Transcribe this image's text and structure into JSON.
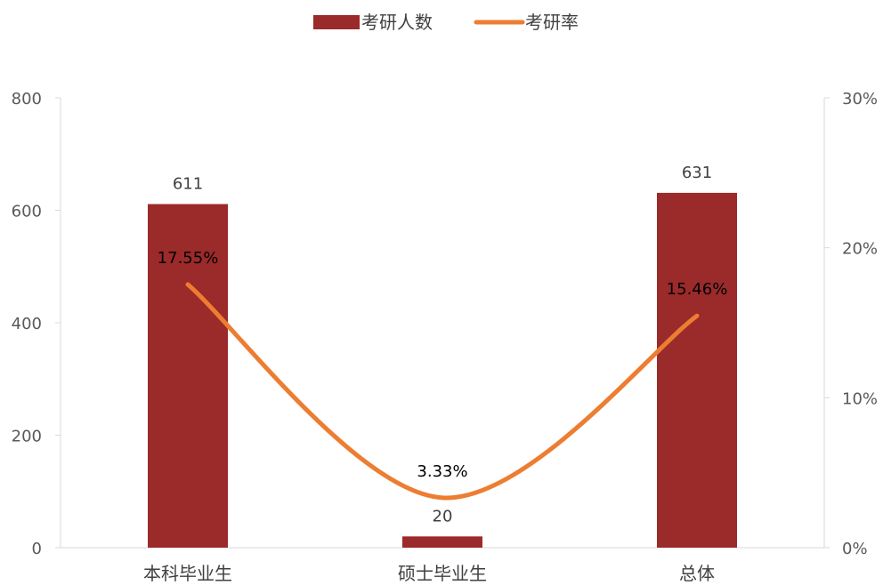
{
  "chart_data": {
    "type": "bar",
    "categories": [
      "本科毕业生",
      "硕士毕业生",
      "总体"
    ],
    "series": [
      {
        "name": "考研人数",
        "type": "bar",
        "axis": "left",
        "values": [
          611,
          20,
          631
        ],
        "labels": [
          "611",
          "20",
          "631"
        ],
        "color": "#9B2A2A"
      },
      {
        "name": "考研率",
        "type": "line",
        "axis": "right",
        "values": [
          17.55,
          3.33,
          15.46
        ],
        "labels": [
          "17.55%",
          "3.33%",
          "15.46%"
        ],
        "color": "#ED7D31",
        "smooth": true
      }
    ],
    "y_left": {
      "ylim": [
        0,
        800
      ],
      "ticks": [
        "0",
        "200",
        "400",
        "600",
        "800"
      ]
    },
    "y_right": {
      "ylim": [
        0,
        30
      ],
      "ticks": [
        "0%",
        "10%",
        "20%",
        "30%"
      ]
    },
    "grid": false,
    "legend": "top-center"
  }
}
